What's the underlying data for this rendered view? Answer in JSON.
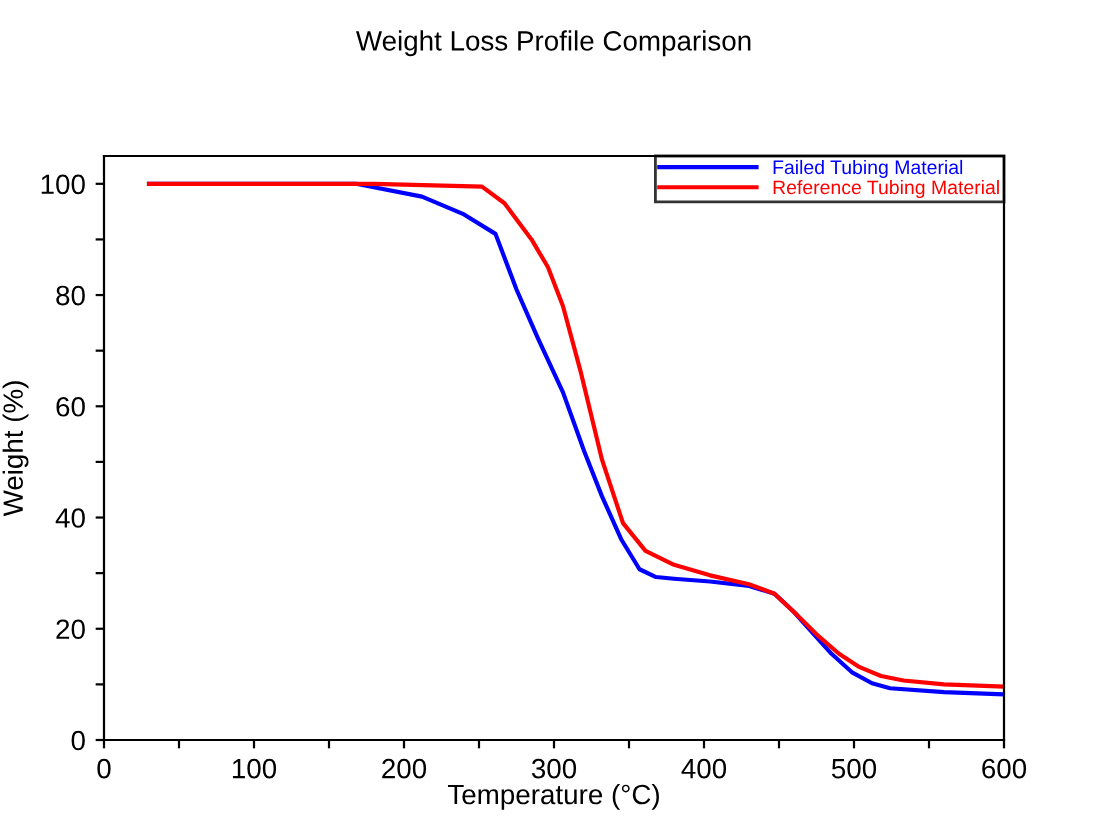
{
  "chart_data": {
    "type": "line",
    "title": "Weight Loss Profile Comparison",
    "xlabel": "Temperature (°C)",
    "ylabel": "Weight (%)",
    "series": [
      {
        "name": "Failed Tubing Material",
        "color": "#0000ff",
        "x": [
          30,
          100,
          168,
          212,
          240,
          261,
          275,
          289,
          306,
          320,
          332,
          345,
          357,
          368,
          380,
          404,
          430,
          447,
          460,
          470,
          485,
          499,
          512,
          524,
          560,
          600
        ],
        "values": [
          100,
          100,
          100,
          97.7,
          94.5,
          91,
          81,
          72.4,
          62.5,
          52,
          43.8,
          36,
          30.7,
          29.3,
          29,
          28.5,
          27.7,
          26.3,
          23,
          20,
          15.5,
          12.1,
          10.2,
          9.3,
          8.6,
          8.2
        ]
      },
      {
        "name": "Reference Tubing Material",
        "color": "#ff0000",
        "x": [
          30,
          100,
          180,
          252,
          267,
          285,
          296,
          306,
          318,
          332,
          346,
          361,
          380,
          404,
          430,
          447,
          462,
          475,
          490,
          503,
          518,
          533,
          560,
          600
        ],
        "values": [
          100,
          100,
          100,
          99.5,
          96.5,
          90,
          85,
          78,
          66,
          50.4,
          39,
          34,
          31.5,
          29.6,
          28,
          26.3,
          22.5,
          19,
          15.5,
          13.2,
          11.5,
          10.7,
          10,
          9.6
        ]
      }
    ],
    "xlim": [
      0,
      600
    ],
    "ylim": [
      0,
      105
    ],
    "xticks": [
      0,
      {
        "value": 50,
        "label": null
      },
      100,
      {
        "value": 150,
        "label": null
      },
      200,
      {
        "value": 250,
        "label": null
      },
      300,
      {
        "value": 350,
        "label": null
      },
      400,
      {
        "value": 450,
        "label": null
      },
      500,
      {
        "value": 550,
        "label": null
      },
      600
    ],
    "yticks": [
      0,
      {
        "value": 10,
        "label": null
      },
      20,
      {
        "value": 30,
        "label": null
      },
      40,
      {
        "value": 50,
        "label": null
      },
      60,
      {
        "value": 70,
        "label": null
      },
      80,
      {
        "value": 90,
        "label": null
      },
      100
    ],
    "grid": false,
    "legend": "top right",
    "line_style": "solid",
    "marker": "none"
  }
}
